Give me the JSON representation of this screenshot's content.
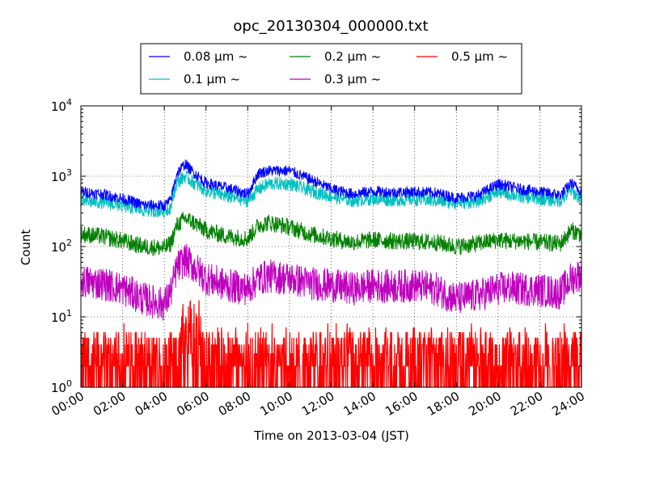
{
  "chart_data": {
    "type": "line",
    "title": "opc_20130304_000000.txt",
    "xlabel": "Time on 2013-03-04 (JST)",
    "ylabel": "Count",
    "y_scale": "log",
    "ylim": [
      1,
      10000
    ],
    "y_ticks": [
      {
        "base": "10",
        "exp": "0"
      },
      {
        "base": "10",
        "exp": "1"
      },
      {
        "base": "10",
        "exp": "2"
      },
      {
        "base": "10",
        "exp": "3"
      },
      {
        "base": "10",
        "exp": "4"
      }
    ],
    "xlim": [
      "00:00",
      "24:00"
    ],
    "x_ticks": [
      "00:00",
      "02:00",
      "04:00",
      "06:00",
      "08:00",
      "10:00",
      "12:00",
      "14:00",
      "16:00",
      "18:00",
      "20:00",
      "22:00",
      "24:00"
    ],
    "grid": true,
    "legend_position": "top-center",
    "series": [
      {
        "name": "0.08 μm ~",
        "color": "#0000ff",
        "x": [
          0,
          1,
          2,
          3,
          4,
          4.3,
          4.6,
          5,
          5.3,
          6,
          7,
          8,
          8.5,
          9,
          10,
          11,
          12,
          13,
          14,
          15,
          16,
          17,
          18,
          19,
          20,
          20.5,
          21,
          22,
          23,
          23.5,
          24
        ],
        "y": [
          600,
          560,
          480,
          390,
          380,
          450,
          1100,
          1500,
          1200,
          800,
          680,
          560,
          1100,
          1200,
          1200,
          900,
          660,
          560,
          610,
          590,
          600,
          580,
          490,
          530,
          770,
          720,
          660,
          600,
          540,
          800,
          600
        ]
      },
      {
        "name": "0.1 μm ~",
        "color": "#00bfbf",
        "x": [
          0,
          1,
          2,
          3,
          4,
          4.3,
          4.6,
          5,
          5.3,
          6,
          7,
          8,
          8.5,
          9,
          10,
          11,
          12,
          13,
          14,
          15,
          16,
          17,
          18,
          19,
          20,
          20.5,
          21,
          22,
          23,
          23.5,
          24
        ],
        "y": [
          440,
          430,
          380,
          330,
          320,
          360,
          820,
          1000,
          850,
          620,
          520,
          450,
          650,
          780,
          780,
          620,
          520,
          450,
          480,
          460,
          470,
          450,
          420,
          440,
          600,
          560,
          520,
          480,
          450,
          620,
          470
        ]
      },
      {
        "name": "0.2 μm ~",
        "color": "#008000",
        "x": [
          0,
          1,
          2,
          3,
          4,
          4.3,
          4.6,
          5,
          5.3,
          6,
          7,
          8,
          8.5,
          9,
          10,
          11,
          12,
          13,
          14,
          15,
          16,
          17,
          18,
          19,
          20,
          20.5,
          21,
          22,
          23,
          23.5,
          24
        ],
        "y": [
          150,
          140,
          120,
          100,
          95,
          110,
          200,
          250,
          230,
          170,
          140,
          130,
          200,
          220,
          190,
          150,
          130,
          115,
          125,
          120,
          118,
          115,
          100,
          110,
          125,
          120,
          120,
          115,
          110,
          170,
          150
        ]
      },
      {
        "name": "0.3 μm ~",
        "color": "#bf00bf",
        "x": [
          0,
          1,
          2,
          3,
          4,
          4.3,
          4.6,
          5,
          5.3,
          6,
          7,
          8,
          8.5,
          9,
          10,
          11,
          12,
          13,
          14,
          15,
          16,
          17,
          18,
          19,
          20,
          20.5,
          21,
          22,
          23,
          23.5,
          24
        ],
        "y": [
          32,
          30,
          25,
          18,
          15,
          22,
          50,
          65,
          55,
          35,
          28,
          25,
          35,
          38,
          35,
          30,
          28,
          25,
          28,
          27,
          28,
          25,
          18,
          20,
          25,
          26,
          25,
          24,
          22,
          35,
          40
        ]
      },
      {
        "name": "0.5 μm ~",
        "color": "#ff0000",
        "x": [
          0,
          1,
          2,
          3,
          4,
          4.3,
          4.6,
          5,
          5.3,
          6,
          7,
          8,
          8.5,
          9,
          10,
          11,
          12,
          13,
          14,
          15,
          16,
          17,
          18,
          19,
          20,
          20.5,
          21,
          22,
          23,
          23.5,
          24
        ],
        "y": [
          2,
          2,
          2,
          2,
          2,
          2,
          3,
          5,
          4,
          2,
          2,
          2,
          2,
          2,
          2,
          2,
          2,
          2,
          2,
          2,
          2,
          2,
          2,
          2,
          2,
          2,
          2,
          2,
          2,
          2,
          2
        ]
      }
    ]
  }
}
